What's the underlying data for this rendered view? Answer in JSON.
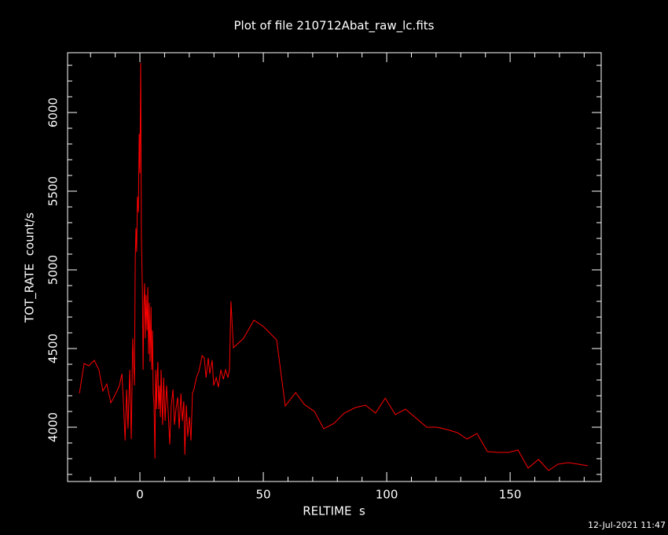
{
  "chart_data": {
    "type": "line",
    "title": "Plot of file 210712Abat_raw_lc.fits",
    "x_label": "RELTIME  s",
    "y_label": "TOT_RATE  count/s",
    "timestamp": "12-Jul-2021 11:47",
    "xlim": [
      -29.3,
      186.9
    ],
    "ylim": [
      3655,
      6380
    ],
    "xticks": [
      0,
      50,
      100,
      150
    ],
    "yticks": [
      4000,
      4500,
      5000,
      5500,
      6000
    ],
    "xticks_minor": [
      -20,
      -10,
      10,
      20,
      30,
      40,
      60,
      70,
      80,
      90,
      110,
      120,
      130,
      140,
      160,
      170,
      180
    ],
    "yticks_minor": [
      3700,
      3800,
      3900,
      4100,
      4200,
      4300,
      4400,
      4600,
      4700,
      4800,
      4900,
      5100,
      5200,
      5300,
      5400,
      5600,
      5700,
      5800,
      5900,
      6100,
      6200,
      6300
    ],
    "series": [
      {
        "color": "#ff0000",
        "x": [
          -24.5,
          -22.6,
          -20.7,
          -18.5,
          -16.6,
          -15,
          -13.4,
          -11.8,
          -10.2,
          -8.3,
          -7.3,
          -6.7,
          -6,
          -5.4,
          -4.8,
          -4.1,
          -3.5,
          -2.9,
          -2.2,
          -1.9,
          -1.6,
          -1.3,
          -1,
          -0.6,
          -0.3,
          0,
          0.3,
          0.6,
          1,
          1.3,
          1.6,
          1.9,
          2.2,
          2.5,
          2.9,
          3.2,
          3.5,
          3.8,
          4.1,
          4.5,
          4.8,
          5.1,
          5.4,
          5.7,
          6.1,
          6.4,
          6.7,
          7,
          7.3,
          7.6,
          8,
          8.3,
          8.6,
          8.9,
          9.2,
          9.6,
          10.2,
          10.8,
          11.5,
          12.1,
          12.7,
          13.4,
          14,
          14.6,
          15.3,
          15.9,
          16.6,
          17.2,
          17.8,
          18.2,
          18.8,
          19.4,
          20.1,
          20.7,
          21.3,
          21.9,
          22.9,
          23.9,
          25.2,
          26.1,
          26.8,
          27.7,
          28.3,
          29.3,
          29.9,
          30.9,
          31.8,
          32.8,
          33.8,
          34.7,
          35.7,
          36.3,
          36.9,
          37.9,
          42,
          46.2,
          50,
          55.4,
          58.9,
          63.1,
          66.6,
          70.7,
          74.5,
          78.7,
          82.8,
          87.3,
          91.4,
          95.5,
          99.4,
          103.5,
          107.6,
          112.1,
          116.2,
          120.4,
          124.5,
          128.7,
          132.5,
          136.6,
          140.8,
          145.2,
          149.4,
          153.2,
          157.3,
          161.5,
          165.6,
          169.4,
          173.6,
          177.7,
          181.5
        ],
        "values": [
          4215,
          4405,
          4390,
          4425,
          4365,
          4230,
          4275,
          4155,
          4200,
          4265,
          4340,
          4165,
          3915,
          4240,
          3990,
          4365,
          3925,
          4565,
          4265,
          5065,
          5265,
          5115,
          5465,
          5365,
          5865,
          5615,
          6315,
          5215,
          4865,
          4365,
          4765,
          4915,
          4565,
          4840,
          4615,
          4890,
          4465,
          4790,
          4415,
          4765,
          4365,
          4615,
          4215,
          4165,
          3800,
          4365,
          4115,
          4315,
          4415,
          4115,
          4265,
          4065,
          4365,
          4165,
          4015,
          4315,
          4040,
          4265,
          4090,
          3890,
          4140,
          4240,
          4015,
          4115,
          4190,
          3990,
          4215,
          4040,
          4165,
          3825,
          4140,
          3940,
          4065,
          3915,
          4215,
          4240,
          4315,
          4355,
          4455,
          4440,
          4315,
          4440,
          4340,
          4425,
          4265,
          4315,
          4255,
          4365,
          4305,
          4365,
          4315,
          4365,
          4800,
          4505,
          4565,
          4680,
          4640,
          4555,
          4135,
          4220,
          4145,
          4100,
          3990,
          4025,
          4090,
          4125,
          4140,
          4090,
          4185,
          4080,
          4115,
          4055,
          4000,
          4000,
          3985,
          3965,
          3925,
          3960,
          3845,
          3840,
          3840,
          3855,
          3740,
          3795,
          3725,
          3765,
          3775,
          3765,
          3755
        ]
      }
    ]
  }
}
